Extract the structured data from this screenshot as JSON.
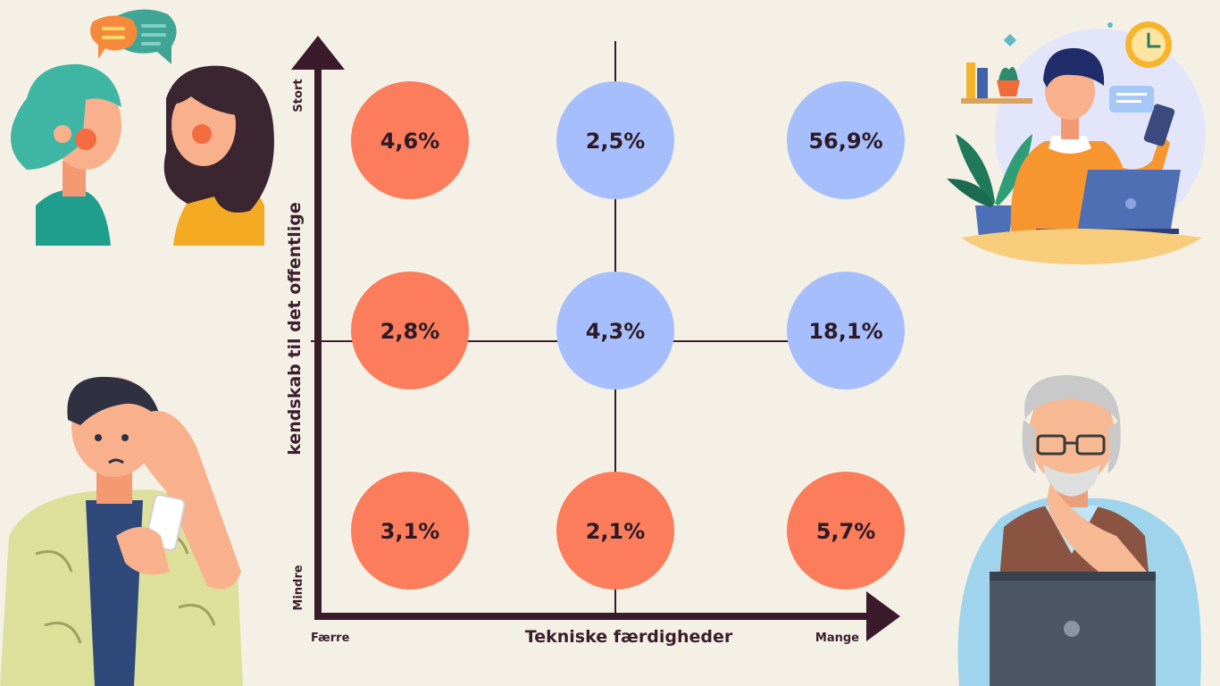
{
  "chart_data": {
    "type": "matrix",
    "xlabel": "Tekniske færdigheder",
    "ylabel": "kendskab til det offentlige",
    "x_low_label": "Færre",
    "x_high_label": "Mange",
    "y_low_label": "Mindre",
    "y_high_label": "Stort",
    "columns": 3,
    "rows": 3,
    "cells": [
      {
        "row": 0,
        "col": 0,
        "label": "4,6%",
        "value": 4.6,
        "color": "#fb7d5b"
      },
      {
        "row": 0,
        "col": 1,
        "label": "2,5%",
        "value": 2.5,
        "color": "#a6bffc"
      },
      {
        "row": 0,
        "col": 2,
        "label": "56,9%",
        "value": 56.9,
        "color": "#a6bffc"
      },
      {
        "row": 1,
        "col": 0,
        "label": "2,8%",
        "value": 2.8,
        "color": "#fb7d5b"
      },
      {
        "row": 1,
        "col": 1,
        "label": "4,3%",
        "value": 4.3,
        "color": "#a6bffc"
      },
      {
        "row": 1,
        "col": 2,
        "label": "18,1%",
        "value": 18.1,
        "color": "#a6bffc"
      },
      {
        "row": 2,
        "col": 0,
        "label": "3,1%",
        "value": 3.1,
        "color": "#fb7d5b"
      },
      {
        "row": 2,
        "col": 1,
        "label": "2,1%",
        "value": 2.1,
        "color": "#fb7d5b"
      },
      {
        "row": 2,
        "col": 2,
        "label": "5,7%",
        "value": 5.7,
        "color": "#fb7d5b"
      }
    ]
  },
  "colors": {
    "background": "#f5f0e6",
    "axis": "#3a1b2c",
    "orange": "#fb7d5b",
    "blue": "#a6bffc"
  },
  "illustrations": [
    "two-women-chatting-illustration",
    "young-man-with-phone-and-laptop-illustration",
    "confused-man-with-phone-illustration",
    "elderly-man-with-laptop-illustration"
  ]
}
